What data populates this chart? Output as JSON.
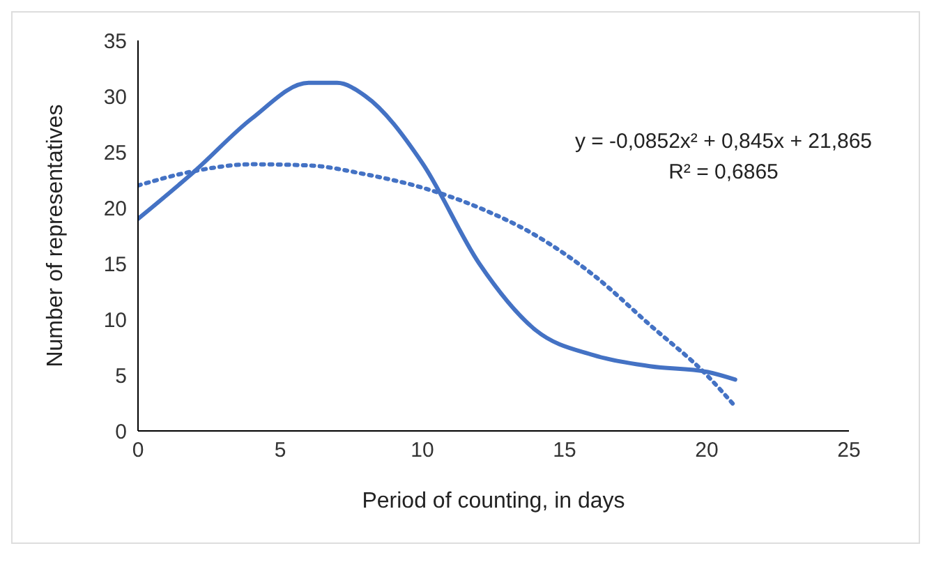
{
  "chart_data": {
    "type": "line",
    "xlabel": "Period of counting,  in days",
    "ylabel": "Number of representatives",
    "xlim": [
      0,
      25
    ],
    "xticks": [
      0,
      5,
      10,
      15,
      20,
      25
    ],
    "ylim": [
      0,
      35
    ],
    "yticks": [
      0,
      5,
      10,
      15,
      20,
      25,
      30,
      35
    ],
    "marker": "none",
    "series": [
      {
        "color": "#4472c4",
        "line_style": "solid",
        "x": [
          0,
          2,
          4,
          6,
          7,
          8,
          10,
          12,
          14,
          16,
          18,
          20,
          21
        ],
        "values": [
          19,
          23.3,
          28,
          31.2,
          31.2,
          30,
          24,
          15,
          9,
          6.8,
          5.8,
          5.3,
          4.6
        ]
      },
      {
        "type": "line",
        "color": "#4472c4",
        "line_style": "dotted",
        "x": [
          0,
          2,
          4,
          6,
          8,
          10,
          12,
          14,
          16,
          18,
          20,
          21
        ],
        "values": [
          22,
          23.3,
          23.9,
          23.8,
          23,
          21.8,
          20,
          17.5,
          14,
          9.5,
          5,
          2.2
        ]
      }
    ],
    "annotations": [
      "y = -0,0852x² + 0,845x + 21,865",
      "R² = 0,6865"
    ]
  }
}
